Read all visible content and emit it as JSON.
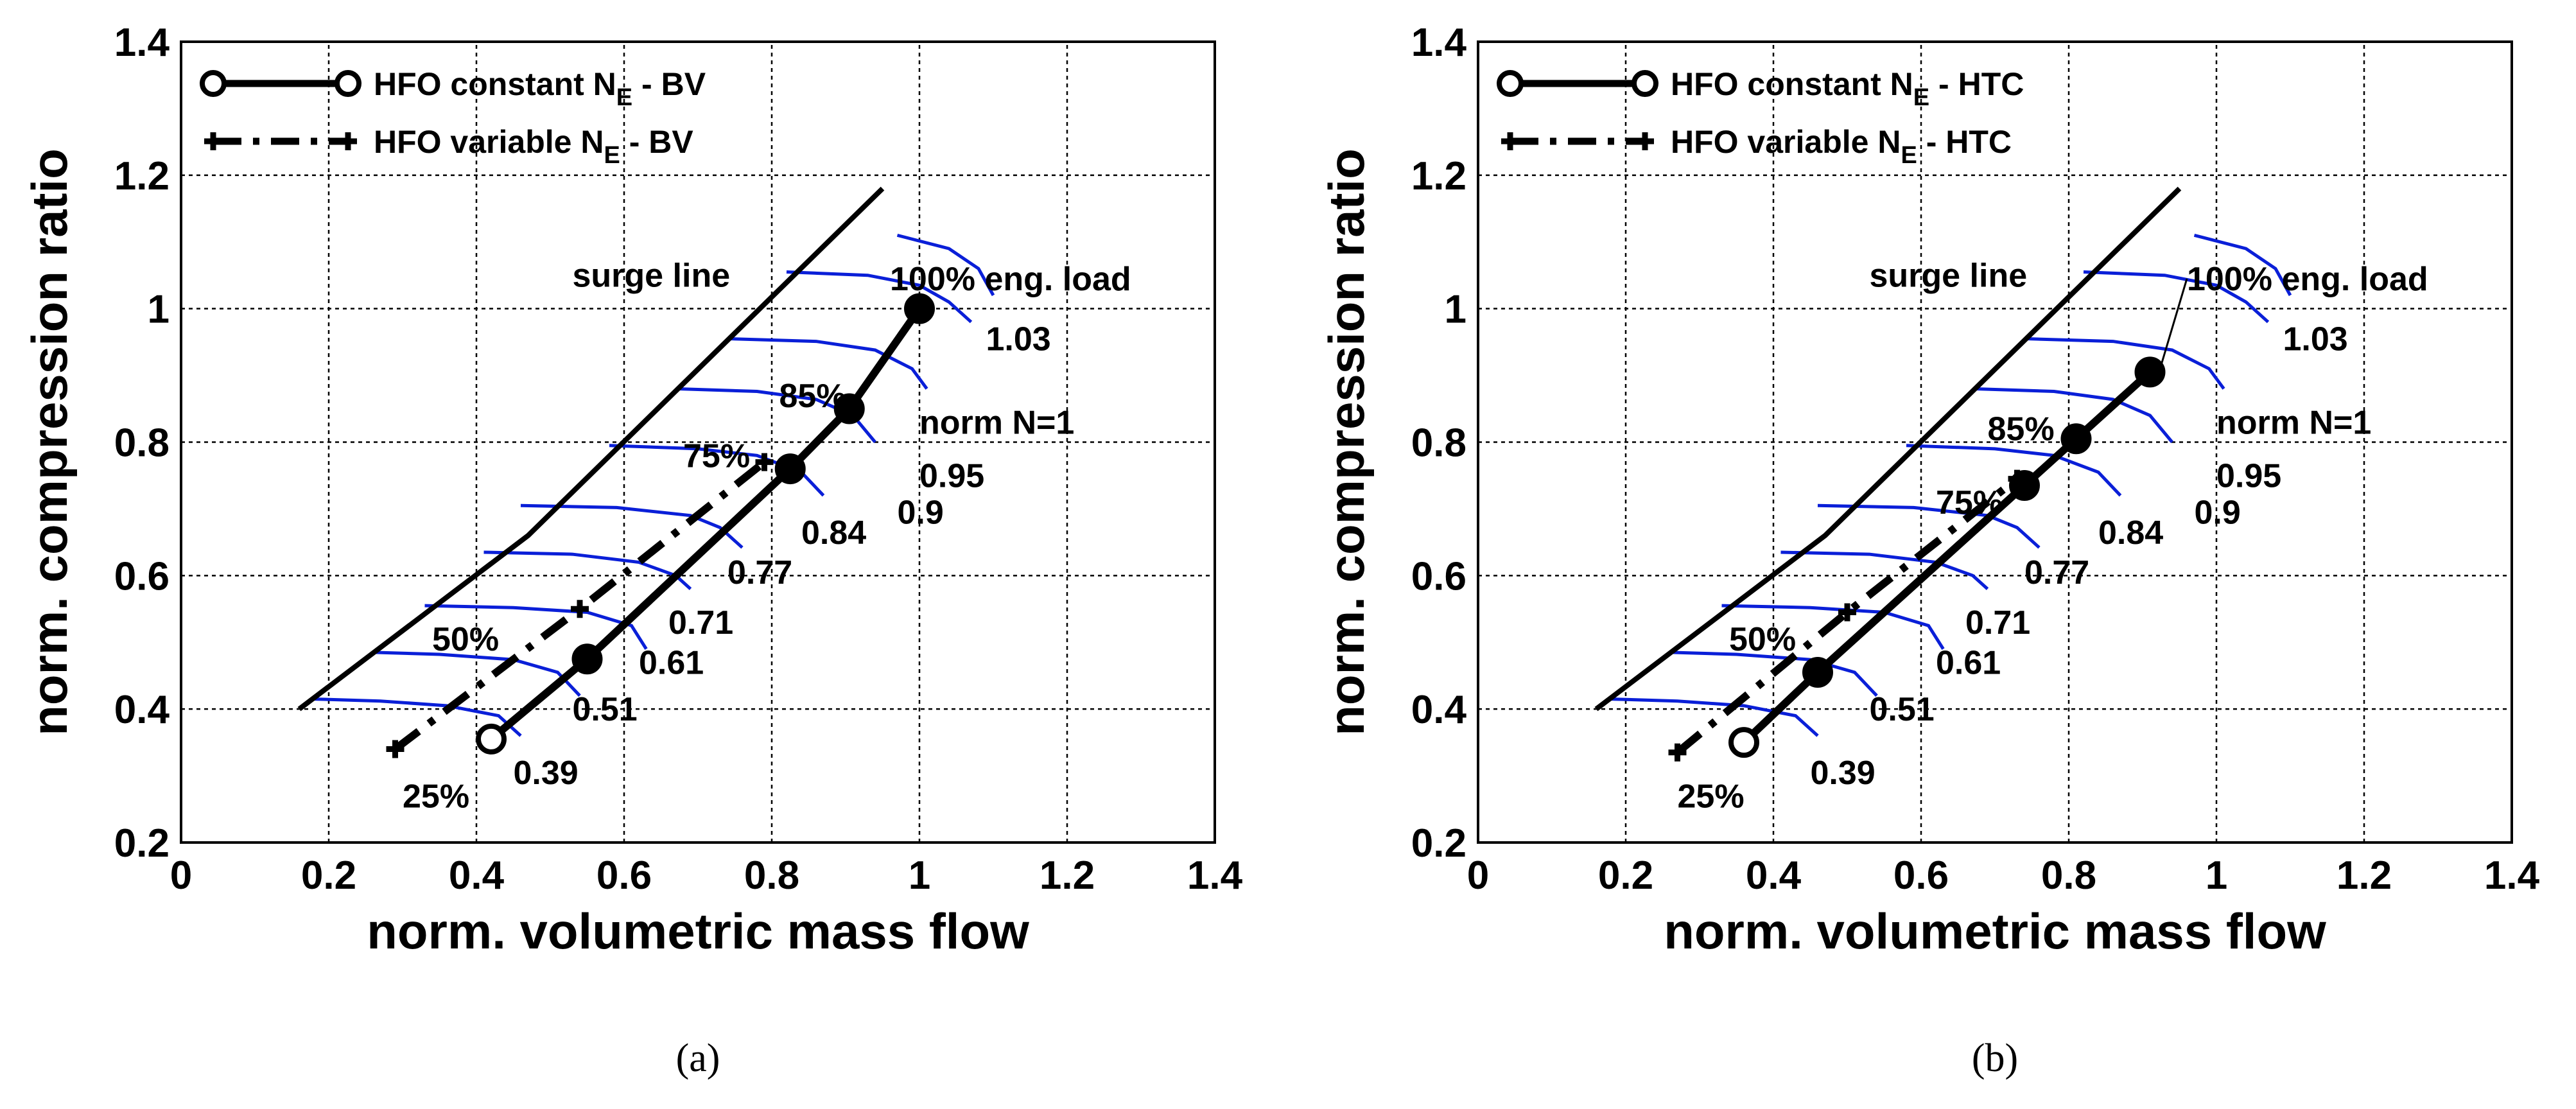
{
  "chart_data": [
    {
      "type": "line",
      "panel_label": "(a)",
      "xlabel": "norm. volumetric mass flow",
      "ylabel": "norm. compression ratio",
      "xlim": [
        0,
        1.4
      ],
      "ylim": [
        0.2,
        1.4
      ],
      "xticks": [
        "0",
        "0.2",
        "0.4",
        "0.6",
        "0.8",
        "1",
        "1.2",
        "1.4"
      ],
      "yticks": [
        "0.2",
        "0.4",
        "0.6",
        "0.8",
        "1",
        "1.2",
        "1.4"
      ],
      "grid": true,
      "legend": [
        {
          "main": "HFO constant N",
          "sub": "E",
          "suffix": " - BV",
          "style": "solid-circle"
        },
        {
          "main": "HFO variable N",
          "sub": "E",
          "suffix": " - BV",
          "style": "dashdot-plus"
        }
      ],
      "legend_position": "top-left",
      "series": [
        {
          "name": "HFO constant NE - BV",
          "x": [
            0.42,
            0.55,
            0.825,
            0.905,
            1.0
          ],
          "y": [
            0.355,
            0.475,
            0.76,
            0.85,
            1.0
          ]
        },
        {
          "name": "HFO variable NE - BV",
          "x": [
            0.29,
            0.54,
            0.79
          ],
          "y": [
            0.34,
            0.55,
            0.77
          ]
        }
      ],
      "surge_line": {
        "label": "surge line",
        "x": [
          0.16,
          0.47,
          0.95
        ],
        "y": [
          0.4,
          0.66,
          1.18
        ]
      },
      "speed_lines": {
        "label": "norm N=1",
        "labels": [
          "0.39",
          "0.51",
          "0.61",
          "0.71",
          "0.77",
          "0.84",
          "0.9",
          "0.95",
          "1.03"
        ],
        "lines": [
          {
            "x": [
              0.18,
              0.27,
              0.36,
              0.43,
              0.46
            ],
            "y": [
              0.415,
              0.412,
              0.405,
              0.39,
              0.36
            ]
          },
          {
            "x": [
              0.26,
              0.35,
              0.45,
              0.51,
              0.54
            ],
            "y": [
              0.485,
              0.482,
              0.474,
              0.455,
              0.42
            ]
          },
          {
            "x": [
              0.33,
              0.45,
              0.55,
              0.61,
              0.63
            ],
            "y": [
              0.555,
              0.552,
              0.545,
              0.525,
              0.49
            ]
          },
          {
            "x": [
              0.41,
              0.53,
              0.62,
              0.67,
              0.69
            ],
            "y": [
              0.635,
              0.632,
              0.62,
              0.6,
              0.58
            ]
          },
          {
            "x": [
              0.46,
              0.59,
              0.69,
              0.73,
              0.76
            ],
            "y": [
              0.705,
              0.702,
              0.69,
              0.672,
              0.642
            ]
          },
          {
            "x": [
              0.58,
              0.7,
              0.78,
              0.84,
              0.87
            ],
            "y": [
              0.795,
              0.79,
              0.78,
              0.755,
              0.72
            ]
          },
          {
            "x": [
              0.67,
              0.78,
              0.86,
              0.91,
              0.94
            ],
            "y": [
              0.88,
              0.876,
              0.864,
              0.84,
              0.8
            ]
          },
          {
            "x": [
              0.74,
              0.86,
              0.94,
              0.99,
              1.01
            ],
            "y": [
              0.955,
              0.951,
              0.938,
              0.91,
              0.88
            ]
          },
          {
            "x": [
              0.82,
              0.93,
              1.0,
              1.04,
              1.07
            ],
            "y": [
              1.055,
              1.05,
              1.035,
              1.01,
              0.98
            ]
          },
          {
            "x": [
              0.97,
              1.04,
              1.08,
              1.1
            ],
            "y": [
              1.11,
              1.09,
              1.06,
              1.02
            ]
          }
        ]
      },
      "annotations": [
        {
          "text": "surge line",
          "x": 0.53,
          "y": 1.05
        },
        {
          "text": "100% eng. load",
          "x": 0.96,
          "y": 1.045
        },
        {
          "text": "85%",
          "x": 0.81,
          "y": 0.87
        },
        {
          "text": "75%",
          "x": 0.68,
          "y": 0.78
        },
        {
          "text": "50%",
          "x": 0.34,
          "y": 0.505
        },
        {
          "text": "25%",
          "x": 0.3,
          "y": 0.27
        },
        {
          "text": "0.39",
          "x": 0.45,
          "y": 0.305
        },
        {
          "text": "0.51",
          "x": 0.53,
          "y": 0.4
        },
        {
          "text": "0.61",
          "x": 0.62,
          "y": 0.47
        },
        {
          "text": "0.71",
          "x": 0.66,
          "y": 0.53
        },
        {
          "text": "0.77",
          "x": 0.74,
          "y": 0.605
        },
        {
          "text": "0.84",
          "x": 0.84,
          "y": 0.665
        },
        {
          "text": "0.9",
          "x": 0.97,
          "y": 0.695
        },
        {
          "text": "0.95",
          "x": 1.0,
          "y": 0.75
        },
        {
          "text": "1.03",
          "x": 1.09,
          "y": 0.955
        },
        {
          "text": "norm N=1",
          "x": 1.0,
          "y": 0.83
        }
      ]
    },
    {
      "type": "line",
      "panel_label": "(b)",
      "xlabel": "norm. volumetric mass flow",
      "ylabel": "norm. compression ratio",
      "xlim": [
        0,
        1.4
      ],
      "ylim": [
        0.2,
        1.4
      ],
      "xticks": [
        "0",
        "0.2",
        "0.4",
        "0.6",
        "0.8",
        "1",
        "1.2",
        "1.4"
      ],
      "yticks": [
        "0.2",
        "0.4",
        "0.6",
        "0.8",
        "1",
        "1.2",
        "1.4"
      ],
      "grid": true,
      "legend": [
        {
          "main": "HFO constant N",
          "sub": "E",
          "suffix": " - HTC",
          "style": "solid-circle"
        },
        {
          "main": "HFO variable N",
          "sub": "E",
          "suffix": " - HTC",
          "style": "dashdot-plus"
        }
      ],
      "legend_position": "top-left",
      "series": [
        {
          "name": "HFO constant NE - HTC",
          "x": [
            0.36,
            0.46,
            0.74,
            0.81,
            0.91
          ],
          "y": [
            0.35,
            0.455,
            0.735,
            0.805,
            0.905
          ]
        },
        {
          "name": "HFO variable NE - HTC",
          "x": [
            0.27,
            0.5,
            0.73
          ],
          "y": [
            0.335,
            0.545,
            0.745
          ]
        }
      ],
      "surge_line": {
        "label": "surge line",
        "x": [
          0.16,
          0.47,
          0.95
        ],
        "y": [
          0.4,
          0.66,
          1.18
        ]
      },
      "speed_lines": {
        "label": "norm N=1",
        "labels": [
          "0.39",
          "0.51",
          "0.61",
          "0.71",
          "0.77",
          "0.84",
          "0.9",
          "0.95",
          "1.03"
        ],
        "lines": [
          {
            "x": [
              0.18,
              0.27,
              0.36,
              0.43,
              0.46
            ],
            "y": [
              0.415,
              0.412,
              0.405,
              0.39,
              0.36
            ]
          },
          {
            "x": [
              0.26,
              0.35,
              0.45,
              0.51,
              0.54
            ],
            "y": [
              0.485,
              0.482,
              0.474,
              0.455,
              0.42
            ]
          },
          {
            "x": [
              0.33,
              0.45,
              0.55,
              0.61,
              0.63
            ],
            "y": [
              0.555,
              0.552,
              0.545,
              0.525,
              0.49
            ]
          },
          {
            "x": [
              0.41,
              0.53,
              0.62,
              0.67,
              0.69
            ],
            "y": [
              0.635,
              0.632,
              0.62,
              0.6,
              0.58
            ]
          },
          {
            "x": [
              0.46,
              0.59,
              0.69,
              0.73,
              0.76
            ],
            "y": [
              0.705,
              0.702,
              0.69,
              0.672,
              0.642
            ]
          },
          {
            "x": [
              0.58,
              0.7,
              0.78,
              0.84,
              0.87
            ],
            "y": [
              0.795,
              0.79,
              0.78,
              0.755,
              0.72
            ]
          },
          {
            "x": [
              0.67,
              0.78,
              0.86,
              0.91,
              0.94
            ],
            "y": [
              0.88,
              0.876,
              0.864,
              0.84,
              0.8
            ]
          },
          {
            "x": [
              0.74,
              0.86,
              0.94,
              0.99,
              1.01
            ],
            "y": [
              0.955,
              0.951,
              0.938,
              0.91,
              0.88
            ]
          },
          {
            "x": [
              0.82,
              0.93,
              1.0,
              1.04,
              1.07
            ],
            "y": [
              1.055,
              1.05,
              1.035,
              1.01,
              0.98
            ]
          },
          {
            "x": [
              0.97,
              1.04,
              1.08,
              1.1
            ],
            "y": [
              1.11,
              1.09,
              1.06,
              1.02
            ]
          }
        ]
      },
      "leader_line": {
        "x": [
          0.96,
          0.925
        ],
        "y": [
          1.045,
          0.915
        ]
      },
      "annotations": [
        {
          "text": "surge line",
          "x": 0.53,
          "y": 1.05
        },
        {
          "text": "100% eng. load",
          "x": 0.96,
          "y": 1.045
        },
        {
          "text": "85%",
          "x": 0.69,
          "y": 0.82
        },
        {
          "text": "75%",
          "x": 0.62,
          "y": 0.71
        },
        {
          "text": "50%",
          "x": 0.34,
          "y": 0.505
        },
        {
          "text": "25%",
          "x": 0.27,
          "y": 0.27
        },
        {
          "text": "0.39",
          "x": 0.45,
          "y": 0.305
        },
        {
          "text": "0.51",
          "x": 0.53,
          "y": 0.4
        },
        {
          "text": "0.61",
          "x": 0.62,
          "y": 0.47
        },
        {
          "text": "0.71",
          "x": 0.66,
          "y": 0.53
        },
        {
          "text": "0.77",
          "x": 0.74,
          "y": 0.605
        },
        {
          "text": "0.84",
          "x": 0.84,
          "y": 0.665
        },
        {
          "text": "0.9",
          "x": 0.97,
          "y": 0.695
        },
        {
          "text": "0.95",
          "x": 1.0,
          "y": 0.75
        },
        {
          "text": "1.03",
          "x": 1.09,
          "y": 0.955
        },
        {
          "text": "norm N=1",
          "x": 1.0,
          "y": 0.83
        }
      ]
    }
  ]
}
